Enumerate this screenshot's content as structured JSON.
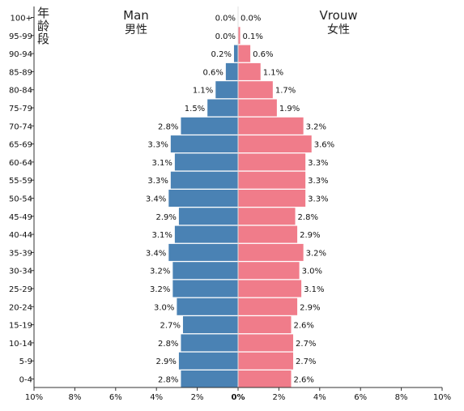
{
  "chart_data": {
    "type": "bar",
    "orientation": "horizontal-pyramid",
    "ylabel": "年龄段",
    "left_title": {
      "en": "Man",
      "zh": "男性"
    },
    "right_title": {
      "en": "Vrouw",
      "zh": "女性"
    },
    "categories": [
      "100+",
      "95-99",
      "90-94",
      "85-89",
      "80-84",
      "75-79",
      "70-74",
      "65-69",
      "60-64",
      "55-59",
      "50-54",
      "45-49",
      "40-44",
      "35-39",
      "30-34",
      "25-29",
      "20-24",
      "15-19",
      "10-14",
      "5-9",
      "0-4"
    ],
    "series": [
      {
        "name": "Man",
        "color": "#4a82b4",
        "values": [
          0.0,
          0.0,
          0.2,
          0.6,
          1.1,
          1.5,
          2.8,
          3.3,
          3.1,
          3.3,
          3.4,
          2.9,
          3.1,
          3.4,
          3.2,
          3.2,
          3.0,
          2.7,
          2.8,
          2.9,
          2.8
        ],
        "labels": [
          "0.0%",
          "0.0%",
          "0.2%",
          "0.6%",
          "1.1%",
          "1.5%",
          "2.8%",
          "3.3%",
          "3.1%",
          "3.3%",
          "3.4%",
          "2.9%",
          "3.1%",
          "3.4%",
          "3.2%",
          "3.2%",
          "3.0%",
          "2.7%",
          "2.8%",
          "2.9%",
          "2.8%"
        ]
      },
      {
        "name": "Vrouw",
        "color": "#f07c8a",
        "values": [
          0.0,
          0.1,
          0.6,
          1.1,
          1.7,
          1.9,
          3.2,
          3.6,
          3.3,
          3.3,
          3.3,
          2.8,
          2.9,
          3.2,
          3.0,
          3.1,
          2.9,
          2.6,
          2.7,
          2.7,
          2.6
        ],
        "labels": [
          "0.0%",
          "0.1%",
          "0.6%",
          "1.1%",
          "1.7%",
          "1.9%",
          "3.2%",
          "3.6%",
          "3.3%",
          "3.3%",
          "3.3%",
          "2.8%",
          "2.9%",
          "3.2%",
          "3.0%",
          "3.1%",
          "2.9%",
          "2.6%",
          "2.7%",
          "2.7%",
          "2.6%"
        ]
      }
    ],
    "xlim": [
      -10,
      10
    ],
    "xticks": [
      -10,
      -8,
      -6,
      -4,
      -2,
      0,
      2,
      4,
      6,
      8,
      10
    ],
    "xtick_labels": [
      "10%",
      "8%",
      "6%",
      "4%",
      "2%",
      "0%",
      "2%",
      "4%",
      "6%",
      "8%",
      "10%"
    ],
    "grid": false,
    "legend": "none"
  }
}
